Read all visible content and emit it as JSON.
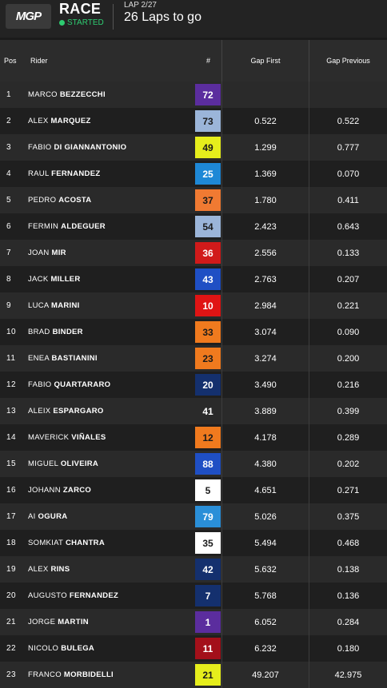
{
  "header": {
    "logo_text": "MGP",
    "race_title": "RACE",
    "status": "STARTED",
    "lap_label": "LAP 2/27",
    "laps_to_go": "26 Laps to go"
  },
  "columns": {
    "pos": "Pos",
    "rider": "Rider",
    "number": "#",
    "gap_first": "Gap First",
    "gap_previous": "Gap Previous"
  },
  "colors": {
    "status_green": "#2ecc71",
    "header_bg": "#232323",
    "row_odd": "#2a2a2a",
    "row_even": "#1f1f1f"
  },
  "riders": [
    {
      "pos": "1",
      "first": "MARCO",
      "last": "BEZZECCHI",
      "number": "72",
      "num_bg": "#5b2d9e",
      "num_fg": "#ffffff",
      "gap_first": "",
      "gap_previous": ""
    },
    {
      "pos": "2",
      "first": "ALEX",
      "last": "MARQUEZ",
      "number": "73",
      "num_bg": "#9bb5d9",
      "num_fg": "#1a1a1a",
      "gap_first": "0.522",
      "gap_previous": "0.522"
    },
    {
      "pos": "3",
      "first": "FABIO",
      "last": "DI GIANNANTONIO",
      "number": "49",
      "num_bg": "#e6ee1c",
      "num_fg": "#1a1a1a",
      "gap_first": "1.299",
      "gap_previous": "0.777"
    },
    {
      "pos": "4",
      "first": "RAUL",
      "last": "FERNANDEZ",
      "number": "25",
      "num_bg": "#1e88d6",
      "num_fg": "#ffffff",
      "gap_first": "1.369",
      "gap_previous": "0.070"
    },
    {
      "pos": "5",
      "first": "PEDRO",
      "last": "ACOSTA",
      "number": "37",
      "num_bg": "#f07a32",
      "num_fg": "#1a1a1a",
      "gap_first": "1.780",
      "gap_previous": "0.411"
    },
    {
      "pos": "6",
      "first": "FERMIN",
      "last": "ALDEGUER",
      "number": "54",
      "num_bg": "#9bb5d9",
      "num_fg": "#1a1a1a",
      "gap_first": "2.423",
      "gap_previous": "0.643"
    },
    {
      "pos": "7",
      "first": "JOAN",
      "last": "MIR",
      "number": "36",
      "num_bg": "#d11a1a",
      "num_fg": "#ffffff",
      "gap_first": "2.556",
      "gap_previous": "0.133"
    },
    {
      "pos": "8",
      "first": "JACK",
      "last": "MILLER",
      "number": "43",
      "num_bg": "#1f4fc4",
      "num_fg": "#ffffff",
      "gap_first": "2.763",
      "gap_previous": "0.207"
    },
    {
      "pos": "9",
      "first": "LUCA",
      "last": "MARINI",
      "number": "10",
      "num_bg": "#e01414",
      "num_fg": "#ffffff",
      "gap_first": "2.984",
      "gap_previous": "0.221"
    },
    {
      "pos": "10",
      "first": "BRAD",
      "last": "BINDER",
      "number": "33",
      "num_bg": "#f07a1e",
      "num_fg": "#1a1a1a",
      "gap_first": "3.074",
      "gap_previous": "0.090"
    },
    {
      "pos": "11",
      "first": "ENEA",
      "last": "BASTIANINI",
      "number": "23",
      "num_bg": "#f07a1e",
      "num_fg": "#1a1a1a",
      "gap_first": "3.274",
      "gap_previous": "0.200"
    },
    {
      "pos": "12",
      "first": "FABIO",
      "last": "QUARTARARO",
      "number": "20",
      "num_bg": "#14306e",
      "num_fg": "#ffffff",
      "gap_first": "3.490",
      "gap_previous": "0.216"
    },
    {
      "pos": "13",
      "first": "ALEIX",
      "last": "ESPARGARO",
      "number": "41",
      "num_bg": "transparent",
      "num_fg": "#ffffff",
      "gap_first": "3.889",
      "gap_previous": "0.399"
    },
    {
      "pos": "14",
      "first": "MAVERICK",
      "last": "VIÑALES",
      "number": "12",
      "num_bg": "#f07a1e",
      "num_fg": "#1a1a1a",
      "gap_first": "4.178",
      "gap_previous": "0.289"
    },
    {
      "pos": "15",
      "first": "MIGUEL",
      "last": "OLIVEIRA",
      "number": "88",
      "num_bg": "#1f4fc4",
      "num_fg": "#ffffff",
      "gap_first": "4.380",
      "gap_previous": "0.202"
    },
    {
      "pos": "16",
      "first": "JOHANN",
      "last": "ZARCO",
      "number": "5",
      "num_bg": "#ffffff",
      "num_fg": "#1a1a1a",
      "gap_first": "4.651",
      "gap_previous": "0.271"
    },
    {
      "pos": "17",
      "first": "AI",
      "last": "OGURA",
      "number": "79",
      "num_bg": "#2a8fd8",
      "num_fg": "#ffffff",
      "gap_first": "5.026",
      "gap_previous": "0.375"
    },
    {
      "pos": "18",
      "first": "SOMKIAT",
      "last": "CHANTRA",
      "number": "35",
      "num_bg": "#ffffff",
      "num_fg": "#1a1a1a",
      "gap_first": "5.494",
      "gap_previous": "0.468"
    },
    {
      "pos": "19",
      "first": "ALEX",
      "last": "RINS",
      "number": "42",
      "num_bg": "#14306e",
      "num_fg": "#ffffff",
      "gap_first": "5.632",
      "gap_previous": "0.138"
    },
    {
      "pos": "20",
      "first": "AUGUSTO",
      "last": "FERNANDEZ",
      "number": "7",
      "num_bg": "#14306e",
      "num_fg": "#ffffff",
      "gap_first": "5.768",
      "gap_previous": "0.136"
    },
    {
      "pos": "21",
      "first": "JORGE",
      "last": "MARTIN",
      "number": "1",
      "num_bg": "#5b2d9e",
      "num_fg": "#ffffff",
      "gap_first": "6.052",
      "gap_previous": "0.284"
    },
    {
      "pos": "22",
      "first": "NICOLO",
      "last": "BULEGA",
      "number": "11",
      "num_bg": "#a3101a",
      "num_fg": "#ffffff",
      "gap_first": "6.232",
      "gap_previous": "0.180"
    },
    {
      "pos": "23",
      "first": "FRANCO",
      "last": "MORBIDELLI",
      "number": "21",
      "num_bg": "#e6ee1c",
      "num_fg": "#1a1a1a",
      "gap_first": "49.207",
      "gap_previous": "42.975"
    }
  ]
}
